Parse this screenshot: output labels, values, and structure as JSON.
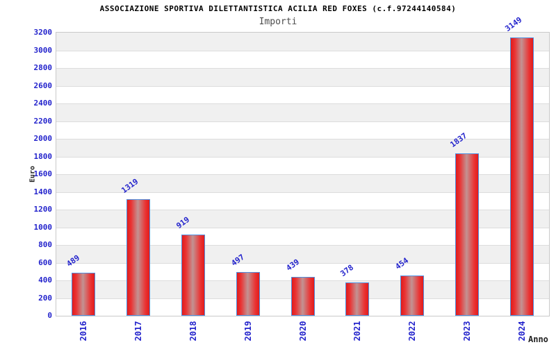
{
  "chart_data": {
    "type": "bar",
    "title": "ASSOCIAZIONE SPORTIVA DILETTANTISTICA ACILIA RED FOXES (c.f.97244140584)",
    "subtitle": "Importi",
    "xlabel": "Anno",
    "ylabel": "Euro",
    "categories": [
      "2016",
      "2017",
      "2018",
      "2019",
      "2020",
      "2021",
      "2022",
      "2023",
      "2024"
    ],
    "values": [
      489,
      1319,
      919,
      497,
      439,
      378,
      454,
      1837,
      3149
    ],
    "ylim": [
      0,
      3200
    ],
    "ytick_step": 200,
    "y_ticks": [
      0,
      200,
      400,
      600,
      800,
      1000,
      1200,
      1400,
      1600,
      1800,
      2000,
      2200,
      2400,
      2600,
      2800,
      3000,
      3200
    ],
    "legend": "none",
    "grid": "horizontal-bands",
    "colors": {
      "label_blue": "#2323cc",
      "bar_edge_red": "#e11b1b",
      "bar_mid_red": "#ea3434",
      "bar_highlight": "#c29393",
      "bar_border_blue": "#4f8fe0",
      "band_gray": "#f0f0f0",
      "band_white": "#ffffff",
      "gridline": "#dcdcdc",
      "plot_border": "#c9c9c9",
      "title_color": "#000000",
      "subtitle_color": "#4c4c4c",
      "axis_title_color": "#222222"
    }
  }
}
